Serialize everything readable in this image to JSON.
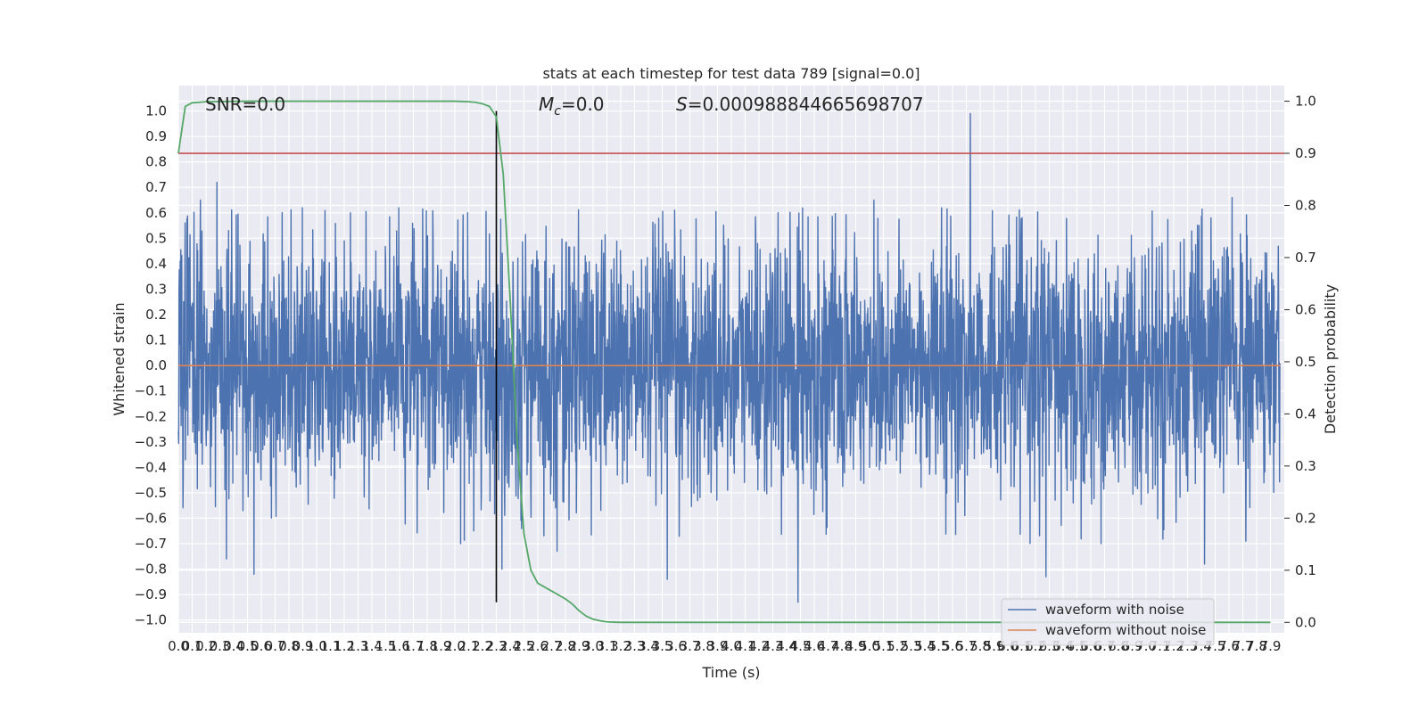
{
  "chart_data": {
    "type": "line",
    "title": "stats at each timestep for test data 789 [signal=0.0]",
    "xlabel": "Time (s)",
    "ylabel": "Whitened strain",
    "y2label": "Detection probability",
    "xlim": [
      0.0,
      8.0
    ],
    "ylim": [
      -1.05,
      1.1
    ],
    "y2lim": [
      -0.02,
      1.03
    ],
    "x_ticks": [
      0.0,
      0.1,
      0.2,
      0.3,
      0.4,
      0.5,
      0.6,
      0.7,
      0.8,
      0.9,
      1.0,
      1.1,
      1.2,
      1.3,
      1.4,
      1.5,
      1.6,
      1.7,
      1.8,
      1.9,
      2.0,
      2.1,
      2.2,
      2.3,
      2.4,
      2.5,
      2.6,
      2.7,
      2.8,
      2.9,
      3.0,
      3.1,
      3.2,
      3.3,
      3.4,
      3.5,
      3.6,
      3.7,
      3.8,
      3.9,
      4.0,
      4.1,
      4.2,
      4.3,
      4.4,
      4.5,
      4.6,
      4.7,
      4.8,
      4.9,
      5.0,
      5.1,
      5.2,
      5.3,
      5.4,
      5.5,
      5.6,
      5.7,
      5.8,
      5.9,
      6.0,
      6.1,
      6.2,
      6.3,
      6.4,
      6.5,
      6.6,
      6.7,
      6.8,
      6.9,
      7.0,
      7.1,
      7.2,
      7.3,
      7.4,
      7.5,
      7.6,
      7.7,
      7.8,
      7.9
    ],
    "y_ticks": [
      "1.0",
      "0.9",
      "0.8",
      "0.7",
      "0.6",
      "0.5",
      "0.4",
      "0.3",
      "0.2",
      "0.1",
      "0.0",
      "−0.1",
      "−0.2",
      "−0.3",
      "−0.4",
      "−0.5",
      "−0.6",
      "−0.7",
      "−0.8",
      "−0.9",
      "−1.0"
    ],
    "y2_ticks": [
      "1.0",
      "0.9",
      "0.8",
      "0.7",
      "0.6",
      "0.5",
      "0.4",
      "0.3",
      "0.2",
      "0.1",
      "0.0"
    ],
    "grid": true,
    "legend_position": "lower-right",
    "annotations": {
      "snr": "SNR=0.0",
      "mc_symbol": "M",
      "mc_sub": "c",
      "mc_value": "=0.0",
      "s_symbol": "S",
      "s_value": "=0.000988844665698707"
    },
    "series": [
      {
        "name": "waveform with noise",
        "color": "#4c72b0",
        "kind": "noise",
        "sigma": 0.25,
        "peaks": [
          {
            "x": 0.05,
            "y": 0.56
          },
          {
            "x": 0.16,
            "y": 0.65
          },
          {
            "x": 0.28,
            "y": 0.72
          },
          {
            "x": 0.55,
            "y": 0.6
          },
          {
            "x": 0.9,
            "y": 0.62
          },
          {
            "x": 1.25,
            "y": 0.6
          },
          {
            "x": 1.6,
            "y": 0.62
          },
          {
            "x": 2.1,
            "y": 0.6
          },
          {
            "x": 3.55,
            "y": 0.79
          },
          {
            "x": 4.5,
            "y": 0.59
          },
          {
            "x": 5.05,
            "y": 0.65
          },
          {
            "x": 5.75,
            "y": 0.99
          },
          {
            "x": 7.65,
            "y": 0.66
          },
          {
            "x": 0.55,
            "y": -0.82
          },
          {
            "x": 0.35,
            "y": -0.76
          },
          {
            "x": 2.05,
            "y": -0.7
          },
          {
            "x": 2.75,
            "y": -0.73
          },
          {
            "x": 3.55,
            "y": -0.84
          },
          {
            "x": 4.5,
            "y": -0.93
          },
          {
            "x": 6.3,
            "y": -0.83
          },
          {
            "x": 6.7,
            "y": -0.7
          },
          {
            "x": 7.45,
            "y": -0.78
          },
          {
            "x": 7.75,
            "y": -0.69
          },
          {
            "x": 2.35,
            "y": -0.8
          }
        ]
      },
      {
        "name": "waveform without noise",
        "color": "#dd8452",
        "kind": "flat",
        "value": 0.0
      }
    ],
    "detection_probability": {
      "color": "#55a868",
      "x": [
        0.0,
        0.05,
        0.1,
        0.2,
        0.5,
        1.0,
        1.5,
        2.0,
        2.1,
        2.15,
        2.2,
        2.25,
        2.3,
        2.35,
        2.4,
        2.45,
        2.5,
        2.55,
        2.6,
        2.7,
        2.8,
        2.85,
        2.9,
        2.95,
        3.0,
        3.05,
        3.1,
        3.2,
        3.5,
        4.0,
        5.0,
        6.0,
        7.0,
        7.9
      ],
      "y": [
        0.9,
        0.99,
        0.997,
        0.999,
        1.0,
        1.0,
        1.0,
        1.0,
        0.999,
        0.998,
        0.995,
        0.99,
        0.97,
        0.86,
        0.62,
        0.35,
        0.17,
        0.1,
        0.075,
        0.06,
        0.045,
        0.035,
        0.022,
        0.012,
        0.006,
        0.003,
        0.001,
        0.0,
        0.0,
        0.0,
        0.0,
        0.0,
        0.0,
        0.0
      ]
    },
    "threshold": {
      "value": 0.9,
      "color": "#c44e52"
    },
    "vertical_marker": {
      "x": 2.3,
      "ymin": -0.93,
      "ymax": 1.0,
      "color": "#000000"
    }
  }
}
